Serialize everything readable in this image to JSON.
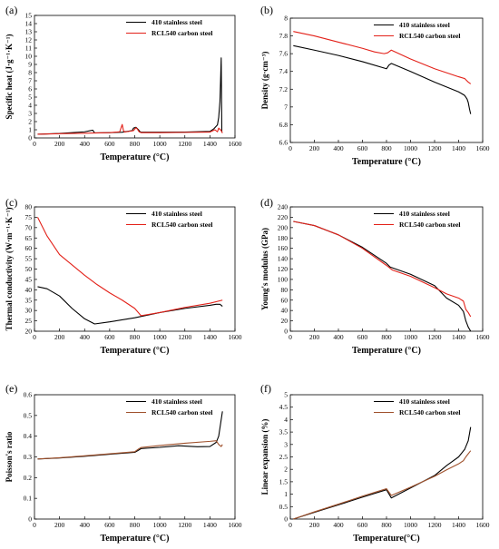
{
  "chart_data": [
    {
      "type": "line",
      "panel_label": "(a)",
      "xlabel": "Temperature (°C)",
      "ylabel": "Specific heat (J·g⁻¹·K⁻¹)",
      "xlim": [
        0,
        1600
      ],
      "ylim": [
        0,
        15
      ],
      "xticks": [
        0,
        200,
        400,
        600,
        800,
        1000,
        1200,
        1400,
        1600
      ],
      "yticks": [
        0,
        1,
        2,
        3,
        4,
        5,
        6,
        7,
        8,
        9,
        10,
        11,
        12,
        13,
        14,
        15
      ],
      "legend_position": "top-right",
      "series": [
        {
          "name": "410 stainless steel",
          "color": "#000000",
          "x": [
            25,
            200,
            400,
            465,
            480,
            600,
            700,
            780,
            790,
            810,
            830,
            840,
            850,
            1000,
            1200,
            1400,
            1430,
            1460,
            1470,
            1480,
            1485,
            1490,
            1495
          ],
          "y": [
            0.45,
            0.55,
            0.75,
            0.95,
            0.62,
            0.65,
            0.7,
            0.9,
            1.2,
            1.3,
            1.0,
            0.8,
            0.7,
            0.7,
            0.72,
            0.8,
            1.1,
            1.6,
            2.5,
            4.5,
            7.0,
            9.8,
            0.7
          ]
        },
        {
          "name": "RCL540 carbon steel",
          "color": "#e32119",
          "x": [
            25,
            200,
            400,
            600,
            680,
            700,
            710,
            720,
            790,
            810,
            820,
            835,
            850,
            1000,
            1200,
            1400,
            1440,
            1460,
            1470,
            1490,
            1500
          ],
          "y": [
            0.45,
            0.52,
            0.58,
            0.65,
            0.75,
            1.65,
            0.9,
            0.72,
            0.9,
            1.25,
            1.1,
            0.75,
            0.65,
            0.65,
            0.68,
            0.72,
            1.0,
            0.75,
            1.2,
            0.9,
            0.6
          ]
        }
      ]
    },
    {
      "type": "line",
      "panel_label": "(b)",
      "xlabel": "Temperature (°C)",
      "ylabel": "Density (g·cm⁻³)",
      "xlim": [
        0,
        1600
      ],
      "ylim": [
        6.6,
        8
      ],
      "xticks": [
        0,
        200,
        400,
        600,
        800,
        1000,
        1200,
        1400,
        1600
      ],
      "yticks": [
        6.6,
        6.8,
        7,
        7.2,
        7.4,
        7.6,
        7.8,
        8
      ],
      "legend_position": "top-right",
      "series": [
        {
          "name": "410 stainless steel",
          "color": "#000000",
          "x": [
            25,
            200,
            400,
            600,
            800,
            820,
            840,
            1000,
            1200,
            1400,
            1450,
            1470,
            1480,
            1490,
            1500
          ],
          "y": [
            7.69,
            7.64,
            7.58,
            7.51,
            7.43,
            7.47,
            7.49,
            7.4,
            7.28,
            7.17,
            7.13,
            7.09,
            7.05,
            6.98,
            6.92
          ]
        },
        {
          "name": "RCL540 carbon steel",
          "color": "#e32119",
          "x": [
            25,
            200,
            400,
            600,
            700,
            780,
            810,
            840,
            1000,
            1200,
            1400,
            1450,
            1480,
            1500
          ],
          "y": [
            7.85,
            7.8,
            7.73,
            7.66,
            7.62,
            7.6,
            7.61,
            7.64,
            7.54,
            7.43,
            7.34,
            7.32,
            7.28,
            7.26
          ]
        }
      ]
    },
    {
      "type": "line",
      "panel_label": "(c)",
      "xlabel": "Temperature (°C)",
      "ylabel": "Thermal conductivity (W·m⁻¹·K⁻¹)",
      "xlim": [
        0,
        1600
      ],
      "ylim": [
        20,
        80
      ],
      "xticks": [
        0,
        200,
        400,
        600,
        800,
        1000,
        1200,
        1400,
        1600
      ],
      "yticks": [
        20,
        25,
        30,
        35,
        40,
        45,
        50,
        55,
        60,
        65,
        70,
        75,
        80
      ],
      "legend_position": "top-right",
      "series": [
        {
          "name": "410 stainless steel",
          "color": "#000000",
          "x": [
            25,
            100,
            200,
            300,
            400,
            480,
            600,
            800,
            1000,
            1200,
            1400,
            1450,
            1480,
            1500
          ],
          "y": [
            41.5,
            40.5,
            37,
            31,
            26,
            23.5,
            24.5,
            26.5,
            29,
            31,
            32.5,
            33,
            33,
            32
          ]
        },
        {
          "name": "RCL540 carbon steel",
          "color": "#e32119",
          "x": [
            25,
            100,
            200,
            300,
            400,
            500,
            600,
            700,
            800,
            850,
            1000,
            1200,
            1400,
            1500
          ],
          "y": [
            75,
            66,
            57,
            52,
            47,
            42.5,
            38.5,
            35,
            31,
            27.5,
            29,
            31.5,
            33.5,
            35
          ]
        }
      ]
    },
    {
      "type": "line",
      "panel_label": "(d)",
      "xlabel": "Temperature (°C)",
      "ylabel": "Young's modulus (GPa)",
      "xlim": [
        0,
        1600
      ],
      "ylim": [
        0,
        240
      ],
      "xticks": [
        0,
        200,
        400,
        600,
        800,
        1000,
        1200,
        1400,
        1600
      ],
      "yticks": [
        0,
        20,
        40,
        60,
        80,
        100,
        120,
        140,
        160,
        180,
        200,
        220,
        240
      ],
      "legend_position": "top-right",
      "series": [
        {
          "name": "410 stainless steel",
          "color": "#000000",
          "x": [
            25,
            200,
            400,
            600,
            800,
            830,
            1000,
            1200,
            1300,
            1400,
            1440,
            1460,
            1480,
            1500
          ],
          "y": [
            212,
            204,
            186,
            162,
            131,
            124,
            110,
            88,
            64,
            50,
            38,
            20,
            8,
            0
          ]
        },
        {
          "name": "RCL540 carbon steel",
          "color": "#e32119",
          "x": [
            25,
            200,
            400,
            600,
            800,
            850,
            1000,
            1200,
            1300,
            1400,
            1440,
            1460,
            1480,
            1500
          ],
          "y": [
            212,
            204,
            186,
            160,
            127,
            118,
            106,
            84,
            72,
            64,
            58,
            42,
            36,
            28
          ]
        }
      ]
    },
    {
      "type": "line",
      "panel_label": "(e)",
      "xlabel": "Temperature (°C)",
      "ylabel": "Poisson's ratio",
      "xlim": [
        0,
        1600
      ],
      "ylim": [
        0,
        0.6
      ],
      "xticks": [
        0,
        200,
        400,
        600,
        800,
        1000,
        1200,
        1400,
        1600
      ],
      "yticks": [
        0,
        0.1,
        0.2,
        0.3,
        0.4,
        0.5,
        0.6
      ],
      "legend_position": "top-right",
      "series": [
        {
          "name": "410 stainless steel",
          "color": "#000000",
          "x": [
            25,
            200,
            400,
            600,
            800,
            830,
            850,
            1000,
            1150,
            1300,
            1400,
            1450,
            1470,
            1480,
            1490,
            1500
          ],
          "y": [
            0.29,
            0.295,
            0.303,
            0.313,
            0.322,
            0.332,
            0.34,
            0.346,
            0.354,
            0.349,
            0.35,
            0.37,
            0.4,
            0.44,
            0.48,
            0.52
          ]
        },
        {
          "name": "RCL540 carbon steel",
          "color": "#a0522d",
          "x": [
            25,
            200,
            400,
            600,
            800,
            830,
            850,
            1000,
            1200,
            1400,
            1450,
            1470,
            1490,
            1500
          ],
          "y": [
            0.29,
            0.296,
            0.305,
            0.315,
            0.325,
            0.338,
            0.345,
            0.355,
            0.366,
            0.375,
            0.378,
            0.36,
            0.35,
            0.36
          ]
        }
      ]
    },
    {
      "type": "line",
      "panel_label": "(f)",
      "xlabel": "Temperature(°C)",
      "ylabel": "Linear expansion (%)",
      "xlim": [
        0,
        1600
      ],
      "ylim": [
        0,
        5
      ],
      "xticks": [
        0,
        200,
        400,
        600,
        800,
        1000,
        1200,
        1400,
        1600
      ],
      "yticks": [
        0,
        0.5,
        1,
        1.5,
        2,
        2.5,
        3,
        3.5,
        4,
        4.5,
        5
      ],
      "legend_position": "top-right",
      "series": [
        {
          "name": "410 stainless steel",
          "color": "#000000",
          "x": [
            25,
            200,
            400,
            600,
            800,
            840,
            1000,
            1200,
            1300,
            1400,
            1450,
            1480,
            1500
          ],
          "y": [
            0,
            0.27,
            0.57,
            0.88,
            1.18,
            0.85,
            1.25,
            1.75,
            2.15,
            2.5,
            2.8,
            3.15,
            3.7
          ]
        },
        {
          "name": "RCL540 carbon steel",
          "color": "#a0522d",
          "x": [
            25,
            200,
            400,
            600,
            800,
            840,
            1000,
            1200,
            1300,
            1400,
            1440,
            1460,
            1500
          ],
          "y": [
            0,
            0.29,
            0.6,
            0.92,
            1.22,
            0.95,
            1.28,
            1.72,
            1.98,
            2.22,
            2.35,
            2.5,
            2.75
          ]
        }
      ]
    }
  ]
}
